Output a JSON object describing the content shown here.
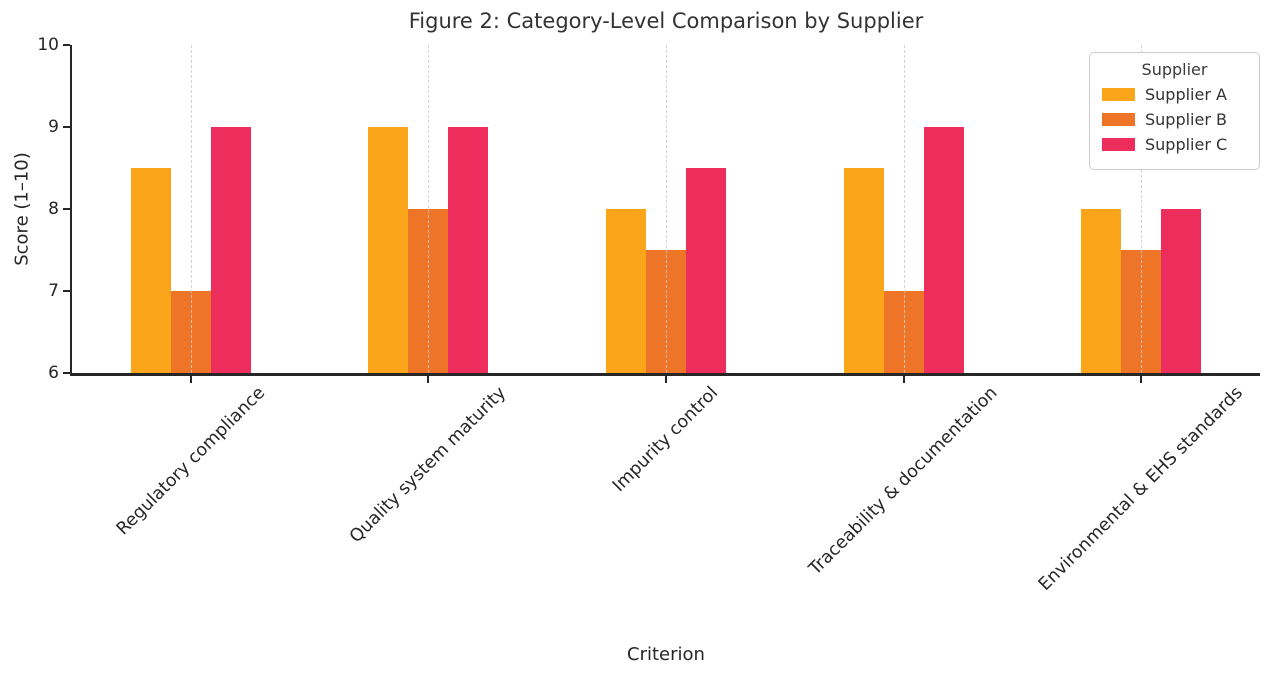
{
  "chart_data": {
    "type": "bar",
    "title": "Figure 2: Category-Level Comparison by Supplier",
    "xlabel": "Criterion",
    "ylabel": "Score (1–10)",
    "ylim": [
      6,
      10
    ],
    "yticks": [
      "6",
      "7",
      "8",
      "9",
      "10"
    ],
    "grid": "vertical-dashed-at-category-centers",
    "background_color": "#ffffff",
    "spine_color": "#262626",
    "categories": [
      "Regulatory compliance",
      "Quality system maturity",
      "Impurity control",
      "Traceability & documentation",
      "Environmental & EHS standards"
    ],
    "series": [
      {
        "name": "Supplier A",
        "color": "#FBA51A",
        "values": [
          8.5,
          9.0,
          8.0,
          8.5,
          8.0
        ]
      },
      {
        "name": "Supplier B",
        "color": "#EE7528",
        "values": [
          7.0,
          8.0,
          7.5,
          7.0,
          7.5
        ]
      },
      {
        "name": "Supplier C",
        "color": "#ED2D5B",
        "values": [
          9.0,
          9.0,
          8.5,
          9.0,
          8.0
        ]
      }
    ],
    "legend": {
      "title": "Supplier",
      "position": "upper right",
      "entries": [
        "Supplier A",
        "Supplier B",
        "Supplier C"
      ]
    }
  }
}
